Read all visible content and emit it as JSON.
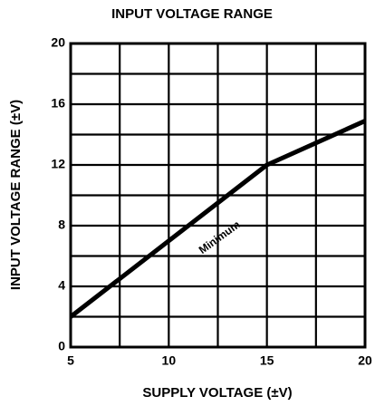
{
  "chart_data": {
    "type": "line",
    "title": "INPUT VOLTAGE RANGE",
    "x_label": "SUPPLY VOLTAGE (±V)",
    "y_label": "INPUT VOLTAGE RANGE (±V)",
    "xlim": [
      5,
      20
    ],
    "xticks": [
      5,
      10,
      15,
      20
    ],
    "x_minor_grid": [
      7.5,
      12.5,
      17.5
    ],
    "ylim": [
      0,
      20
    ],
    "yticks": [
      0,
      4,
      8,
      12,
      16,
      20
    ],
    "y_minor_grid": [
      2,
      6,
      10,
      14,
      18
    ],
    "grid": true,
    "series": [
      {
        "name": "Minimum",
        "color": "#000000",
        "x": [
          5,
          15,
          20
        ],
        "values": [
          2,
          12,
          14.9
        ]
      }
    ],
    "annotation": {
      "text": "Minimum",
      "x": 12.6,
      "y": 7.2
    }
  }
}
